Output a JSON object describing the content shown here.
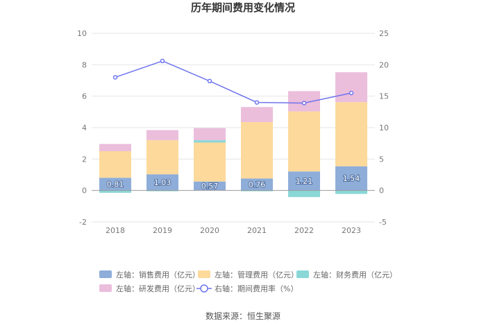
{
  "chart_data": {
    "type": "bar",
    "title": "历年期间费用变化情况",
    "categories": [
      "2018",
      "2019",
      "2020",
      "2021",
      "2022",
      "2023"
    ],
    "stacked": true,
    "left_axis": {
      "ylim": [
        -2,
        10
      ],
      "ticks": [
        "-2",
        "0",
        "2",
        "4",
        "6",
        "8",
        "10"
      ]
    },
    "right_axis": {
      "ylim": [
        -5,
        25
      ],
      "ticks": [
        "-5",
        "0",
        "5",
        "10",
        "15",
        "20",
        "25"
      ]
    },
    "grid": true,
    "legend_position": "bottom",
    "series": [
      {
        "name": "左轴：销售费用（亿元）",
        "axis": "left",
        "kind": "bar",
        "color": "#8eadd9",
        "values": [
          0.81,
          1.03,
          0.57,
          0.76,
          1.21,
          1.54
        ],
        "labels": [
          "0.81",
          "1.03",
          "0.57",
          "0.76",
          "1.21",
          "1.54"
        ]
      },
      {
        "name": "左轴：管理费用（亿元）",
        "axis": "left",
        "kind": "bar",
        "color": "#fdd99b",
        "values": [
          1.69,
          2.17,
          2.48,
          3.59,
          3.82,
          4.08
        ]
      },
      {
        "name": "左轴：财务费用（亿元）",
        "axis": "left",
        "kind": "bar",
        "color": "#8ad7d7",
        "values": [
          -0.15,
          -0.05,
          0.15,
          -0.05,
          -0.42,
          -0.22
        ]
      },
      {
        "name": "左轴：研发费用（亿元）",
        "axis": "left",
        "kind": "bar",
        "color": "#ebbedc",
        "values": [
          0.46,
          0.64,
          0.77,
          0.96,
          1.29,
          1.9
        ]
      },
      {
        "name": "右轴：期间费用率（%）",
        "axis": "right",
        "kind": "line",
        "color": "#6e74ee",
        "values": [
          18.0,
          20.6,
          17.4,
          14.0,
          13.9,
          15.5
        ]
      }
    ]
  },
  "footer": {
    "source": "数据来源：恒生聚源"
  }
}
